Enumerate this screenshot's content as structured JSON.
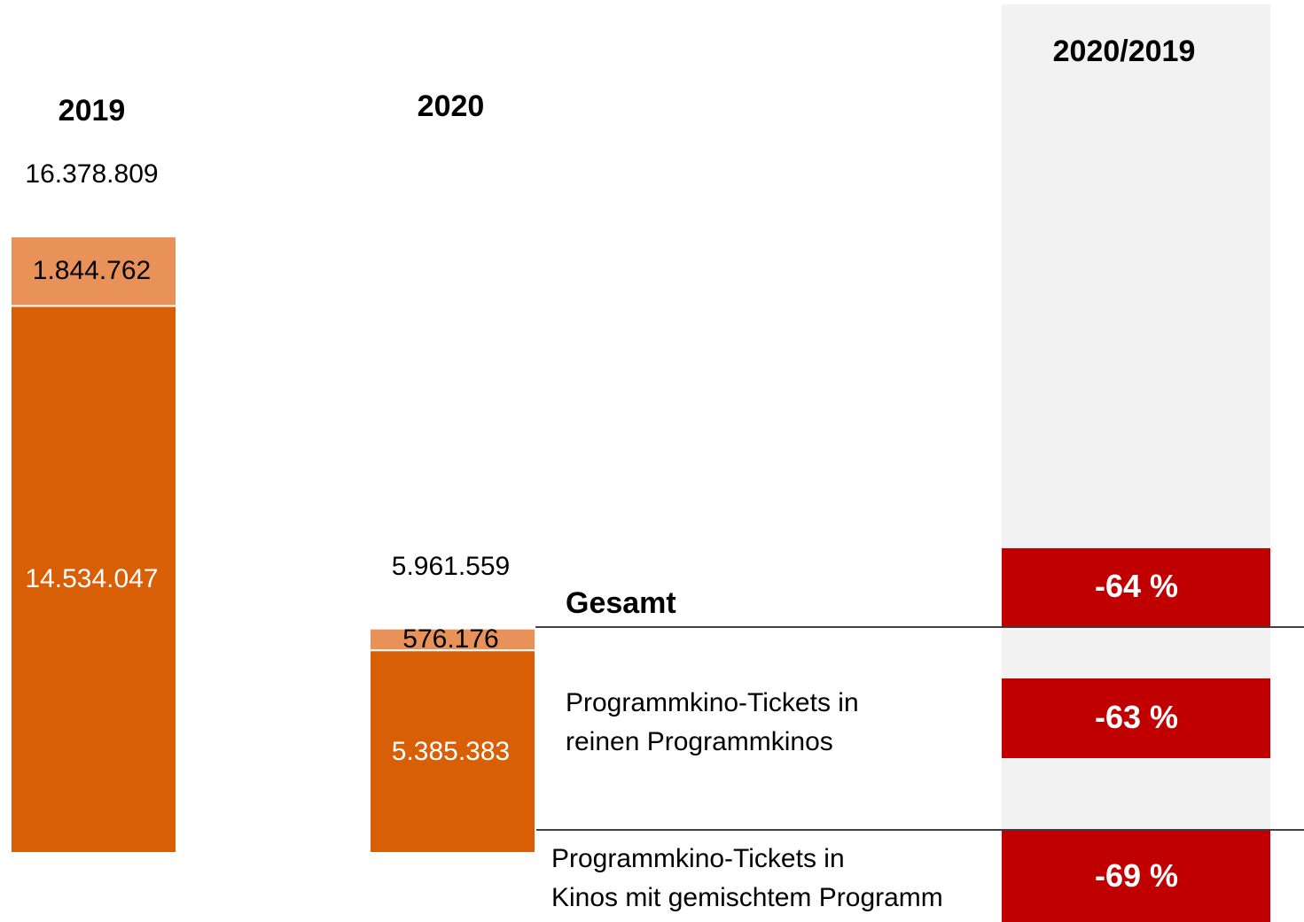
{
  "chart_data": {
    "type": "stacked_bar",
    "categories": [
      "2019",
      "2020"
    ],
    "series": [
      {
        "name": "Programmkino-Tickets in\nreinen Programmkinos",
        "color": "#d95f07",
        "label_color": "#ffffff",
        "values": [
          14534047,
          5385383
        ],
        "value_labels": [
          "14.534.047",
          "5.385.383"
        ]
      },
      {
        "name": "Programmkino-Tickets in\nKinos mit gemischtem Programm",
        "color": "#e8925a",
        "label_color": "#000000",
        "values": [
          1844762,
          576176
        ],
        "value_labels": [
          "1.844.762",
          "576.176"
        ]
      }
    ],
    "total": {
      "name": "Gesamt",
      "values": [
        16378809,
        5961559
      ],
      "value_labels": [
        "16.378.809",
        "5.961.559"
      ]
    },
    "change": {
      "title": "2020/2019",
      "color": "#c00000",
      "values": [
        -64,
        -63,
        -69
      ],
      "value_labels": [
        "-64 %",
        "-63 %",
        "-69 %"
      ]
    }
  }
}
